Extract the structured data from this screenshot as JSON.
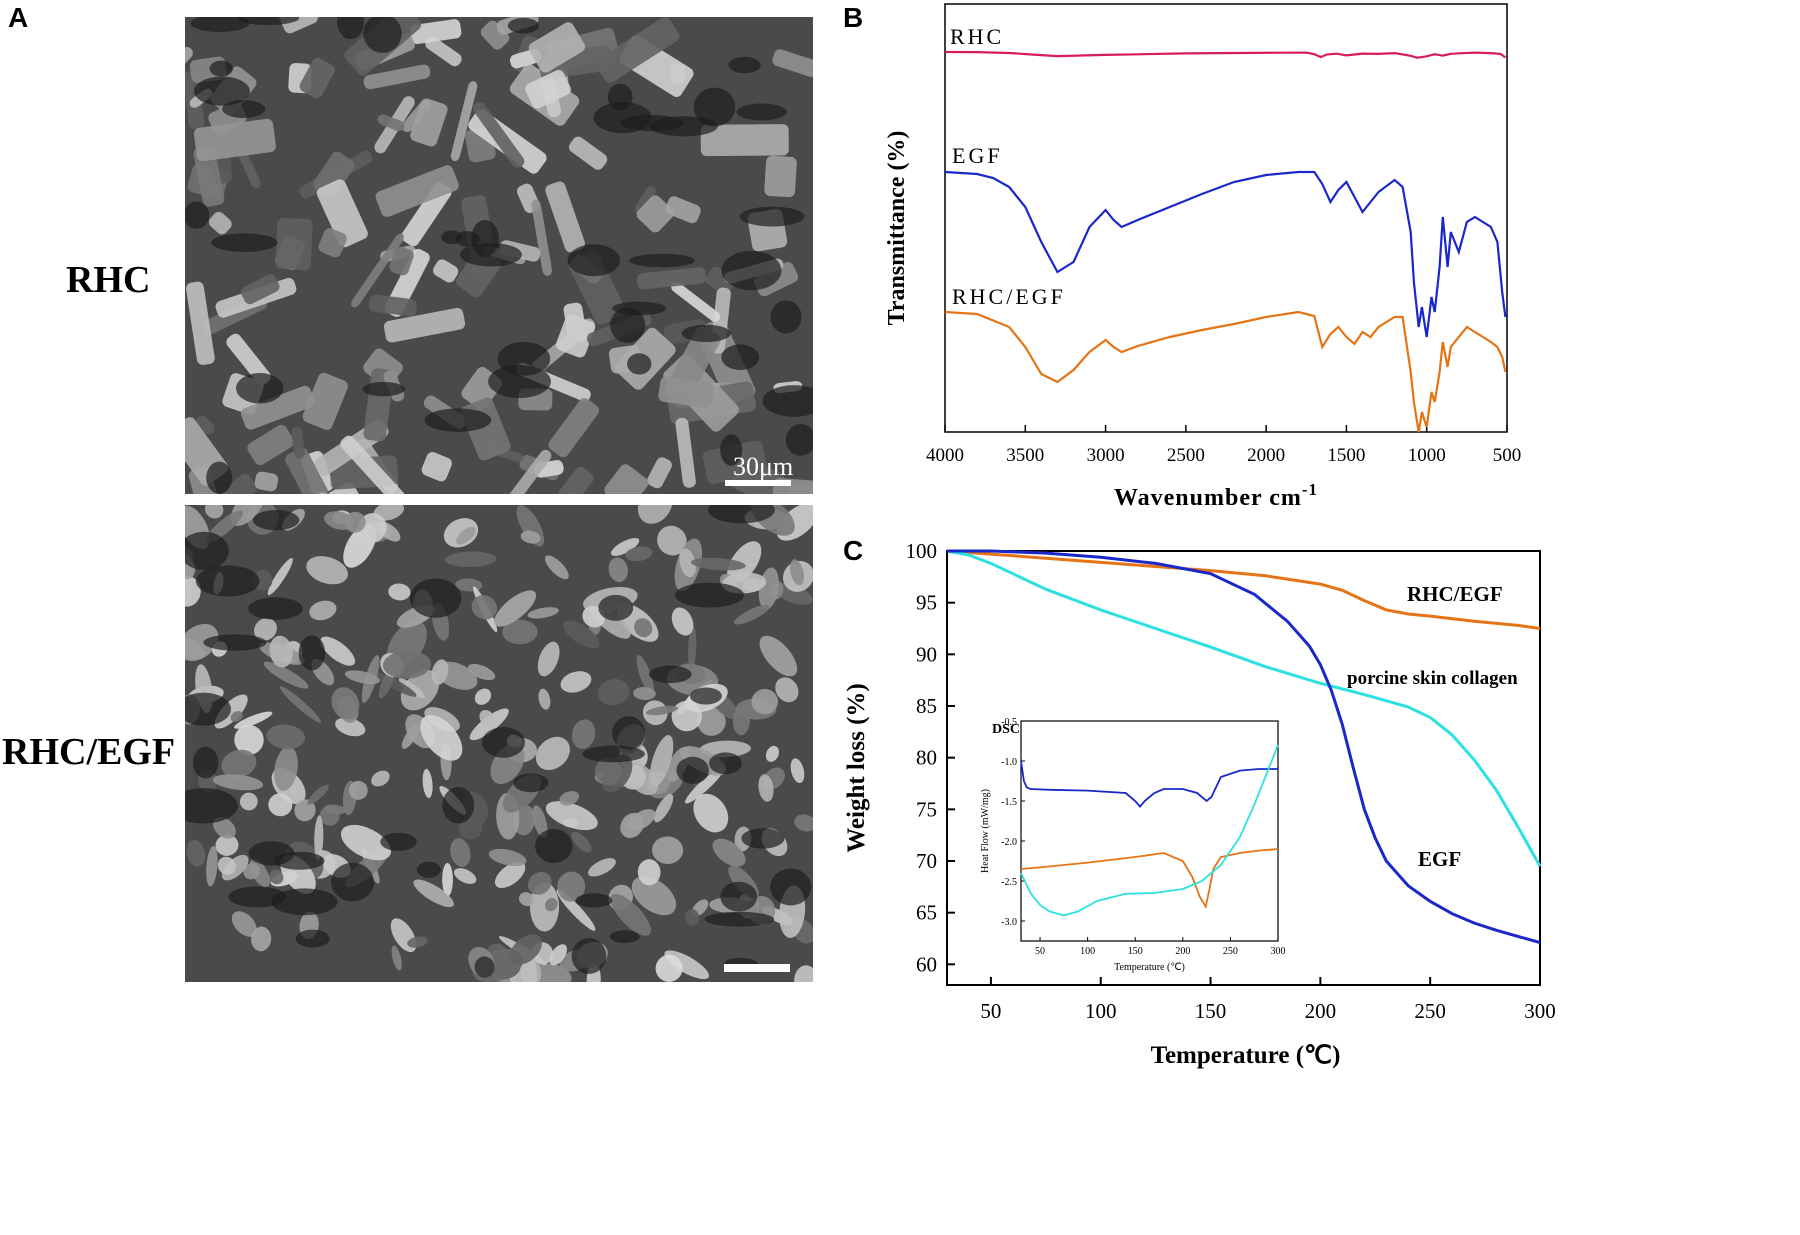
{
  "panels": {
    "a": {
      "letter": "A",
      "rows": [
        {
          "label": "RHC",
          "scale_bar_text": "30μm"
        },
        {
          "label": "RHC/EGF",
          "scale_bar_text": ""
        }
      ]
    },
    "b": {
      "letter": "B"
    },
    "c": {
      "letter": "C"
    }
  },
  "chart_data": [
    {
      "id": "ftir",
      "type": "line",
      "title": "",
      "xlabel": "Wavenumber cm",
      "xlabel_superscript": "-1",
      "ylabel": "Transmittance (%)",
      "xlim": [
        4000,
        500
      ],
      "x_ticks": [
        4000,
        3500,
        3000,
        2500,
        2000,
        1500,
        1000,
        500
      ],
      "y_ticks_shown": false,
      "series": [
        {
          "name": "RHC",
          "color": "#d81b60",
          "x": [
            4000,
            3800,
            3600,
            3450,
            3300,
            3150,
            3000,
            2800,
            2500,
            2200,
            1900,
            1750,
            1700,
            1660,
            1620,
            1560,
            1500,
            1400,
            1300,
            1200,
            1100,
            1060,
            1000,
            950,
            900,
            850,
            800,
            700,
            600,
            540,
            510
          ],
          "y": [
            0.0,
            0.1,
            0.8,
            2.2,
            3.4,
            2.9,
            2.4,
            1.9,
            1.2,
            0.8,
            0.6,
            0.5,
            1.8,
            4.2,
            2.0,
            1.4,
            2.8,
            1.3,
            1.6,
            0.9,
            3.2,
            4.8,
            3.6,
            1.8,
            3.0,
            1.5,
            1.1,
            0.5,
            0.9,
            1.6,
            4.6
          ]
        },
        {
          "name": "EGF",
          "color": "#1a27c9",
          "x": [
            4000,
            3800,
            3700,
            3600,
            3500,
            3400,
            3300,
            3200,
            3100,
            3000,
            2950,
            2900,
            2800,
            2600,
            2400,
            2200,
            2000,
            1800,
            1700,
            1650,
            1600,
            1550,
            1500,
            1450,
            1400,
            1350,
            1300,
            1200,
            1150,
            1100,
            1080,
            1050,
            1030,
            1000,
            970,
            950,
            920,
            900,
            870,
            850,
            800,
            750,
            700,
            600,
            560,
            530,
            510
          ],
          "y": [
            0,
            2,
            6,
            15,
            35,
            70,
            100,
            90,
            55,
            38,
            48,
            55,
            48,
            35,
            22,
            10,
            3,
            0,
            0,
            12,
            30,
            18,
            10,
            25,
            40,
            30,
            20,
            8,
            15,
            60,
            110,
            155,
            135,
            165,
            125,
            140,
            95,
            45,
            95,
            60,
            80,
            50,
            45,
            55,
            70,
            120,
            145
          ]
        },
        {
          "name": "RHC/EGF",
          "color": "#e47415",
          "x": [
            4000,
            3800,
            3600,
            3500,
            3400,
            3300,
            3200,
            3100,
            3000,
            2950,
            2900,
            2800,
            2600,
            2400,
            2200,
            2000,
            1800,
            1700,
            1650,
            1600,
            1550,
            1500,
            1450,
            1400,
            1350,
            1300,
            1200,
            1150,
            1100,
            1080,
            1050,
            1030,
            1000,
            970,
            950,
            920,
            900,
            870,
            850,
            800,
            750,
            700,
            600,
            560,
            530,
            510
          ],
          "y": [
            0,
            2,
            15,
            35,
            62,
            70,
            58,
            40,
            28,
            35,
            40,
            34,
            25,
            18,
            12,
            5,
            0,
            4,
            35,
            22,
            15,
            25,
            32,
            20,
            25,
            15,
            5,
            5,
            60,
            90,
            120,
            100,
            115,
            80,
            90,
            60,
            30,
            55,
            35,
            25,
            15,
            20,
            30,
            35,
            45,
            60
          ]
        }
      ]
    },
    {
      "id": "tga",
      "type": "line",
      "title": "",
      "xlabel": "Temperature (℃)",
      "ylabel": "Weight loss (%)",
      "xlim": [
        30,
        300
      ],
      "ylim": [
        58,
        100
      ],
      "x_ticks": [
        50,
        100,
        150,
        200,
        250,
        300
      ],
      "y_ticks": [
        60,
        65,
        70,
        75,
        80,
        85,
        90,
        95,
        100
      ],
      "series": [
        {
          "name": "RHC/EGF",
          "color": "#e47415",
          "x": [
            30,
            50,
            75,
            100,
            125,
            150,
            175,
            200,
            210,
            220,
            230,
            240,
            250,
            270,
            290,
            300
          ],
          "y": [
            100,
            99.7,
            99.3,
            98.9,
            98.5,
            98.1,
            97.6,
            96.8,
            96.2,
            95.2,
            94.3,
            93.9,
            93.7,
            93.2,
            92.8,
            92.5
          ]
        },
        {
          "name": "porcine skin collagen",
          "color": "#2ee0e0",
          "x": [
            30,
            40,
            50,
            60,
            75,
            100,
            125,
            150,
            175,
            200,
            220,
            240,
            250,
            260,
            270,
            280,
            290,
            300
          ],
          "y": [
            100,
            99.6,
            98.8,
            97.8,
            96.3,
            94.3,
            92.5,
            90.7,
            88.8,
            87.2,
            86.1,
            84.9,
            83.9,
            82.2,
            79.8,
            76.9,
            73.3,
            69.5
          ]
        },
        {
          "name": "EGF",
          "color": "#1a27c9",
          "x": [
            30,
            50,
            75,
            100,
            125,
            150,
            170,
            185,
            195,
            200,
            205,
            210,
            215,
            220,
            225,
            230,
            240,
            250,
            260,
            270,
            280,
            290,
            300
          ],
          "y": [
            100,
            100,
            99.8,
            99.4,
            98.8,
            97.8,
            95.8,
            93.2,
            90.8,
            89.0,
            86.5,
            83.2,
            79.0,
            75.0,
            72.2,
            70.0,
            67.6,
            66.1,
            64.9,
            64.0,
            63.3,
            62.7,
            62.1
          ]
        }
      ],
      "labels": [
        "RHC/EGF",
        "porcine skin collagen",
        "EGF"
      ],
      "inset": {
        "title": "DSC",
        "xlabel": "Temperature (℃)",
        "ylabel": "Heat Flow (mW/mg)",
        "xlim": [
          30,
          300
        ],
        "ylim": [
          -3.25,
          -0.5
        ],
        "x_ticks": [
          50,
          100,
          150,
          200,
          250,
          300
        ],
        "y_ticks": [
          -3.0,
          -2.5,
          -2.0,
          -1.5,
          -1.0,
          -0.5
        ],
        "series": [
          {
            "name": "EGF",
            "color": "#1a27c9",
            "x": [
              30,
              33,
              36,
              40,
              60,
              100,
              140,
              150,
              155,
              160,
              170,
              180,
              200,
              215,
              225,
              230,
              240,
              260,
              280,
              300
            ],
            "y": [
              -1.0,
              -1.25,
              -1.33,
              -1.35,
              -1.36,
              -1.37,
              -1.4,
              -1.5,
              -1.57,
              -1.5,
              -1.4,
              -1.35,
              -1.35,
              -1.4,
              -1.5,
              -1.45,
              -1.2,
              -1.12,
              -1.1,
              -1.1
            ]
          },
          {
            "name": "RHC/EGF",
            "color": "#e47415",
            "x": [
              30,
              50,
              100,
              150,
              180,
              200,
              210,
              218,
              224,
              228,
              232,
              240,
              260,
              280,
              300
            ],
            "y": [
              -2.35,
              -2.33,
              -2.27,
              -2.2,
              -2.15,
              -2.25,
              -2.45,
              -2.7,
              -2.82,
              -2.6,
              -2.35,
              -2.2,
              -2.15,
              -2.12,
              -2.1
            ]
          },
          {
            "name": "porcine skin collagen",
            "color": "#2ee0e0",
            "x": [
              30,
              40,
              50,
              60,
              75,
              90,
              110,
              140,
              170,
              200,
              220,
              240,
              260,
              275,
              290,
              300
            ],
            "y": [
              -2.4,
              -2.65,
              -2.8,
              -2.88,
              -2.93,
              -2.88,
              -2.75,
              -2.66,
              -2.65,
              -2.6,
              -2.5,
              -2.3,
              -1.95,
              -1.55,
              -1.1,
              -0.8
            ]
          }
        ]
      }
    }
  ]
}
